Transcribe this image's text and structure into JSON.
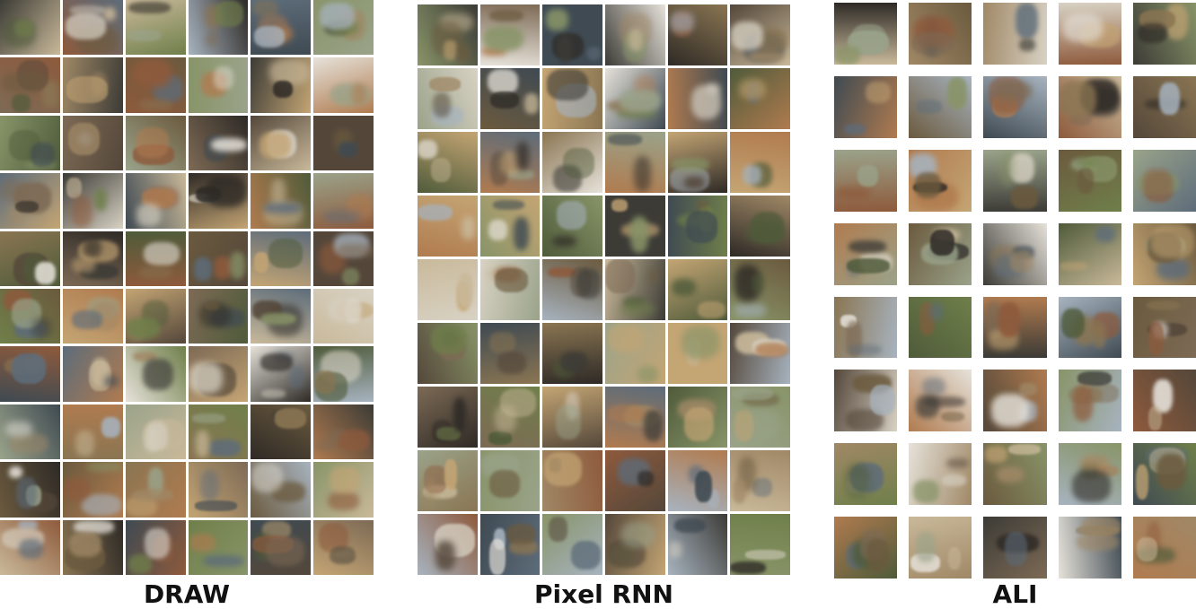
{
  "figure": {
    "panels": [
      {
        "id": "draw",
        "label": "DRAW",
        "rows": 10,
        "cols": 6,
        "seed": 11
      },
      {
        "id": "pixel-rnn",
        "label": "Pixel RNN",
        "rows": 9,
        "cols": 6,
        "seed": 29
      },
      {
        "id": "ali",
        "label": "ALI",
        "rows": 8,
        "cols": 5,
        "seed": 47
      }
    ],
    "palette": [
      "#6b5a3e",
      "#8a7552",
      "#4f5b3a",
      "#a08866",
      "#3c3b36",
      "#c9b99a",
      "#7d6a55",
      "#5d6c7a",
      "#9aa38a",
      "#b07b4f",
      "#2e2a26",
      "#d8d2c4",
      "#6f7f4a",
      "#8e5a3c",
      "#a7b3bf",
      "#54473a",
      "#c4a574",
      "#3f4a52",
      "#889468",
      "#e6e2da"
    ]
  }
}
